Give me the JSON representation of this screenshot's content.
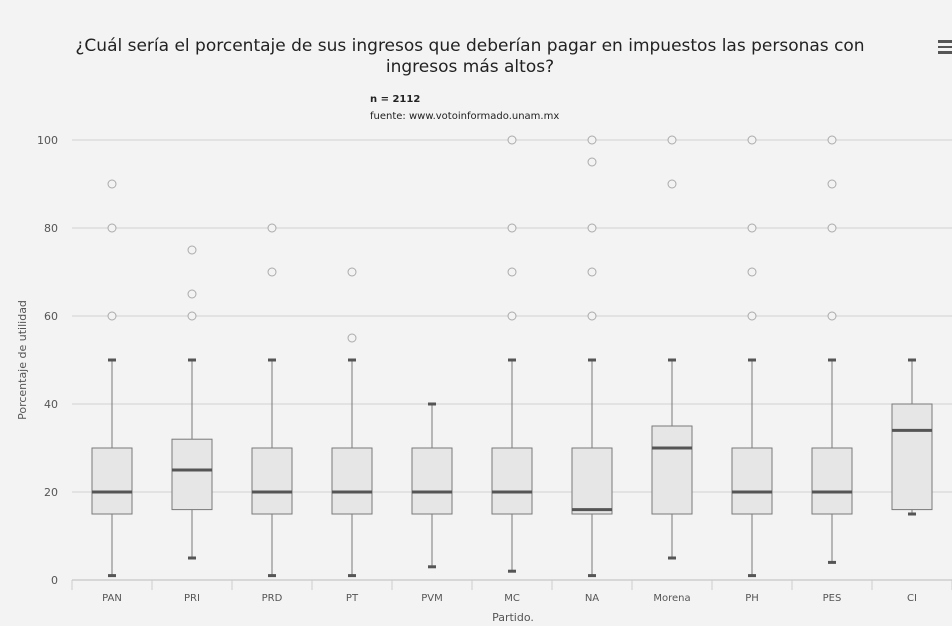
{
  "title": "¿Cuál sería el porcentaje de sus ingresos que deberían pagar en impuestos las personas con ingresos más altos?",
  "subtitle_n": "n = 2112",
  "subtitle_source": "fuente: www.votoinformado.unam.mx",
  "menu_icon": "hamburger-menu-icon",
  "chart_data": {
    "type": "boxplot",
    "xlabel": "Partido.",
    "ylabel": "Porcentaje de utilidad",
    "ylim": [
      0,
      100
    ],
    "yticks": [
      0,
      20,
      40,
      60,
      80,
      100
    ],
    "grid": true,
    "categories": [
      "PAN",
      "PRI",
      "PRD",
      "PT",
      "PVM",
      "MC",
      "NA",
      "Morena",
      "PH",
      "PES",
      "CI"
    ],
    "boxes": [
      {
        "low": 1,
        "q1": 15,
        "median": 20,
        "q3": 30,
        "high": 50,
        "outliers": [
          60,
          80,
          90
        ]
      },
      {
        "low": 5,
        "q1": 16,
        "median": 25,
        "q3": 32,
        "high": 50,
        "outliers": [
          60,
          65,
          75
        ]
      },
      {
        "low": 1,
        "q1": 15,
        "median": 20,
        "q3": 30,
        "high": 50,
        "outliers": [
          70,
          80
        ]
      },
      {
        "low": 1,
        "q1": 15,
        "median": 20,
        "q3": 30,
        "high": 50,
        "outliers": [
          55,
          70
        ]
      },
      {
        "low": 3,
        "q1": 15,
        "median": 20,
        "q3": 30,
        "high": 40,
        "outliers": []
      },
      {
        "low": 2,
        "q1": 15,
        "median": 20,
        "q3": 30,
        "high": 50,
        "outliers": [
          60,
          70,
          80,
          100
        ]
      },
      {
        "low": 1,
        "q1": 15,
        "median": 16,
        "q3": 30,
        "high": 50,
        "outliers": [
          60,
          70,
          80,
          95,
          100
        ]
      },
      {
        "low": 5,
        "q1": 15,
        "median": 30,
        "q3": 35,
        "high": 50,
        "outliers": [
          90,
          100
        ]
      },
      {
        "low": 1,
        "q1": 15,
        "median": 20,
        "q3": 30,
        "high": 50,
        "outliers": [
          60,
          70,
          80,
          100
        ]
      },
      {
        "low": 4,
        "q1": 15,
        "median": 20,
        "q3": 30,
        "high": 50,
        "outliers": [
          60,
          80,
          90,
          100
        ]
      },
      {
        "low": 15,
        "q1": 16,
        "median": 34,
        "q3": 40,
        "high": 50,
        "outliers": []
      }
    ],
    "colors": {
      "box_fill": "#e6e6e6",
      "box_stroke": "#7a7a7a",
      "median": "#555555",
      "grid": "#d0d0d0",
      "outlier_stroke": "#aaaaaa"
    }
  }
}
